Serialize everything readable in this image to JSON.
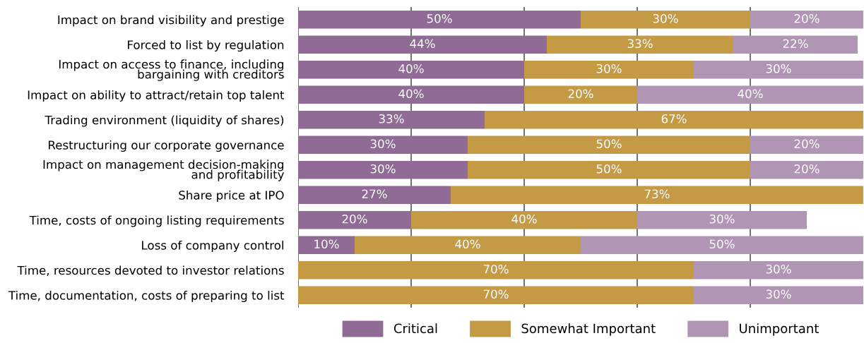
{
  "chart_data": {
    "type": "bar",
    "orientation": "horizontal",
    "stacked": true,
    "categories": [
      "Impact on brand visibility and prestige",
      "Forced to list by regulation",
      "Impact on access to finance, including\nbargaining with creditors",
      "Impact on ability to attract/retain top talent",
      "Trading environment (liquidity of shares)",
      "Restructuring our corporate governance",
      "Impact on management decision-making\nand profitability",
      "Share price at IPO",
      "Time, costs of ongoing listing requirements",
      "Loss of company control",
      "Time, resources devoted to investor relations",
      "Time, documentation, costs of preparing to list"
    ],
    "series": [
      {
        "name": "Critical",
        "color": "#8f6b96",
        "values": [
          50,
          44,
          40,
          40,
          33,
          30,
          30,
          27,
          20,
          10,
          null,
          null
        ],
        "value_labels": [
          "50%",
          "44%",
          "40%",
          "40%",
          "33%",
          "30%",
          "30%",
          "27%",
          "20%",
          "10%",
          null,
          null
        ]
      },
      {
        "name": "Somewhat Important",
        "color": "#c49a45",
        "values": [
          30,
          33,
          30,
          20,
          67,
          50,
          50,
          73,
          40,
          40,
          70,
          70
        ],
        "value_labels": [
          "30%",
          "33%",
          "30%",
          "20%",
          "67%",
          "50%",
          "50%",
          "73%",
          "40%",
          "40%",
          "70%",
          "70%"
        ]
      },
      {
        "name": "Unimportant",
        "color": "#b095b5",
        "values": [
          20,
          22,
          30,
          40,
          null,
          20,
          20,
          null,
          30,
          50,
          30,
          30
        ],
        "value_labels": [
          "20%",
          "22%",
          "30%",
          "40%",
          null,
          "20%",
          "20%",
          null,
          "30%",
          "50%",
          "30%",
          "30%"
        ]
      }
    ],
    "xlim": [
      0,
      100
    ],
    "xticks": [
      {
        "value": 0,
        "label": null
      },
      {
        "value": 20,
        "label": null
      },
      {
        "value": 40,
        "label": null
      },
      {
        "value": 60,
        "label": null
      },
      {
        "value": 80,
        "label": null
      }
    ],
    "tick_labels": "y",
    "grid": "x",
    "legend": "bottom"
  }
}
